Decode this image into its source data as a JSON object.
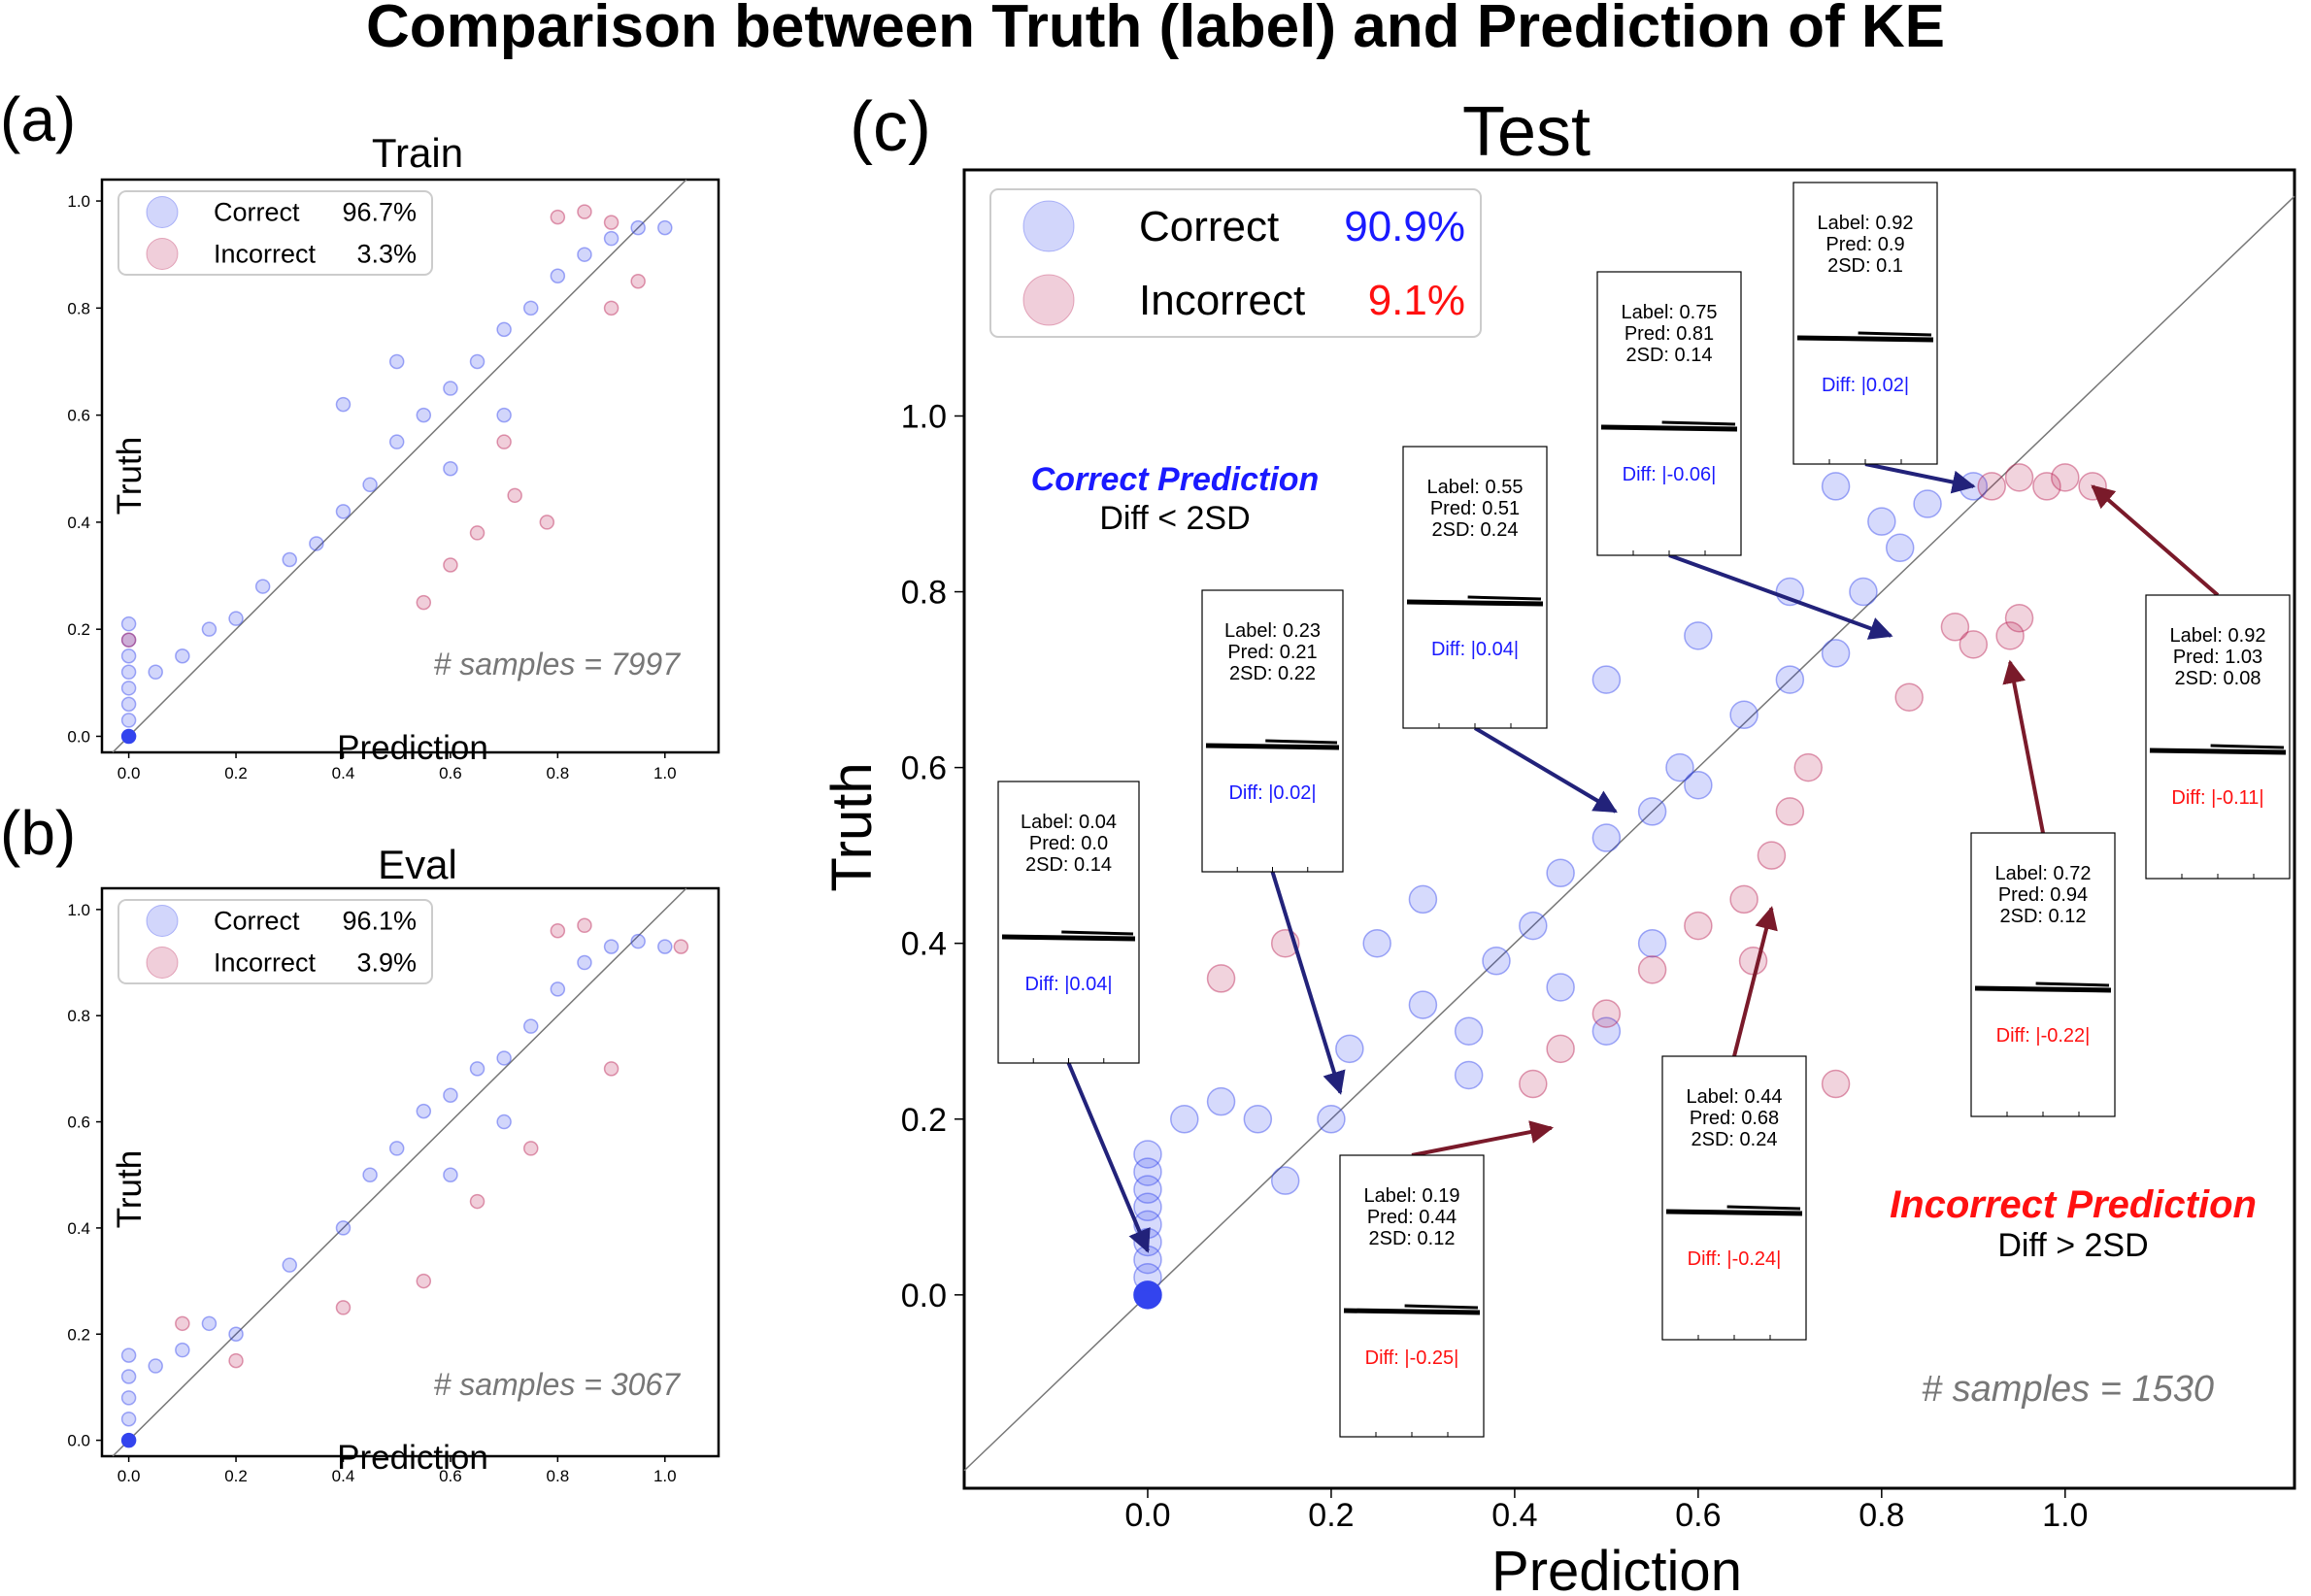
{
  "figure_title": "Comparison between Truth (label) and Prediction of KE",
  "colors": {
    "correct": "#3344ee",
    "incorrect": "#bb2255",
    "correct_text": "#1a1aff",
    "incorrect_text": "#ff1010",
    "arrow_correct": "#22227a",
    "arrow_incorrect": "#7a1a2a",
    "samples_text": "#777777"
  },
  "chart_data": [
    {
      "panel_label": "(a)",
      "type": "scatter",
      "title": "Train",
      "xlabel": "Prediction",
      "ylabel": "Truth",
      "xlim": [
        -0.05,
        1.1
      ],
      "ylim": [
        -0.03,
        1.04
      ],
      "xticks": [
        "0.0",
        "0.2",
        "0.4",
        "0.6",
        "0.8",
        "1.0"
      ],
      "yticks": [
        "0.0",
        "0.2",
        "0.4",
        "0.6",
        "0.8",
        "1.0"
      ],
      "legend": [
        {
          "label": "Correct",
          "value": "96.7%"
        },
        {
          "label": "Incorrect",
          "value": "3.3%"
        }
      ],
      "legend_position": "top-left",
      "samples_text": "# samples = 7997",
      "n_samples": 7997,
      "correct_pct": 96.7,
      "incorrect_pct": 3.3,
      "diagonal": "y = x",
      "series": [
        {
          "name": "Correct",
          "points": [
            [
              0,
              0
            ],
            [
              0,
              0.03
            ],
            [
              0,
              0.06
            ],
            [
              0,
              0.09
            ],
            [
              0,
              0.12
            ],
            [
              0,
              0.15
            ],
            [
              0,
              0.18
            ],
            [
              0,
              0.21
            ],
            [
              0.05,
              0.12
            ],
            [
              0.1,
              0.15
            ],
            [
              0.15,
              0.2
            ],
            [
              0.2,
              0.22
            ],
            [
              0.25,
              0.28
            ],
            [
              0.3,
              0.33
            ],
            [
              0.35,
              0.36
            ],
            [
              0.4,
              0.42
            ],
            [
              0.45,
              0.47
            ],
            [
              0.5,
              0.55
            ],
            [
              0.55,
              0.6
            ],
            [
              0.6,
              0.65
            ],
            [
              0.65,
              0.7
            ],
            [
              0.7,
              0.76
            ],
            [
              0.75,
              0.8
            ],
            [
              0.8,
              0.86
            ],
            [
              0.85,
              0.9
            ],
            [
              0.9,
              0.93
            ],
            [
              0.95,
              0.95
            ],
            [
              1.0,
              0.95
            ],
            [
              0.5,
              0.7
            ],
            [
              0.4,
              0.62
            ],
            [
              0.6,
              0.5
            ],
            [
              0.7,
              0.6
            ]
          ]
        },
        {
          "name": "Incorrect",
          "points": [
            [
              0.8,
              0.97
            ],
            [
              0.85,
              0.98
            ],
            [
              0.9,
              0.96
            ],
            [
              0.7,
              0.55
            ],
            [
              0.72,
              0.45
            ],
            [
              0.6,
              0.32
            ],
            [
              0.65,
              0.38
            ],
            [
              0.55,
              0.25
            ],
            [
              0.9,
              0.8
            ],
            [
              0.95,
              0.85
            ],
            [
              0.0,
              0.18
            ],
            [
              0.78,
              0.4
            ]
          ]
        }
      ]
    },
    {
      "panel_label": "(b)",
      "type": "scatter",
      "title": "Eval",
      "xlabel": "Prediction",
      "ylabel": "Truth",
      "xlim": [
        -0.05,
        1.1
      ],
      "ylim": [
        -0.03,
        1.04
      ],
      "xticks": [
        "0.0",
        "0.2",
        "0.4",
        "0.6",
        "0.8",
        "1.0"
      ],
      "yticks": [
        "0.0",
        "0.2",
        "0.4",
        "0.6",
        "0.8",
        "1.0"
      ],
      "legend": [
        {
          "label": "Correct",
          "value": "96.1%"
        },
        {
          "label": "Incorrect",
          "value": "3.9%"
        }
      ],
      "legend_position": "top-left",
      "samples_text": "# samples = 3067",
      "n_samples": 3067,
      "correct_pct": 96.1,
      "incorrect_pct": 3.9,
      "diagonal": "y = x",
      "series": [
        {
          "name": "Correct",
          "points": [
            [
              0,
              0
            ],
            [
              0,
              0.04
            ],
            [
              0,
              0.08
            ],
            [
              0,
              0.12
            ],
            [
              0,
              0.16
            ],
            [
              0.05,
              0.14
            ],
            [
              0.1,
              0.17
            ],
            [
              0.15,
              0.22
            ],
            [
              0.2,
              0.2
            ],
            [
              0.3,
              0.33
            ],
            [
              0.4,
              0.4
            ],
            [
              0.45,
              0.5
            ],
            [
              0.5,
              0.55
            ],
            [
              0.55,
              0.62
            ],
            [
              0.6,
              0.65
            ],
            [
              0.65,
              0.7
            ],
            [
              0.7,
              0.72
            ],
            [
              0.75,
              0.78
            ],
            [
              0.8,
              0.85
            ],
            [
              0.85,
              0.9
            ],
            [
              0.9,
              0.93
            ],
            [
              0.95,
              0.94
            ],
            [
              1.0,
              0.93
            ],
            [
              0.6,
              0.5
            ],
            [
              0.7,
              0.6
            ]
          ]
        },
        {
          "name": "Incorrect",
          "points": [
            [
              0.8,
              0.96
            ],
            [
              0.85,
              0.97
            ],
            [
              1.03,
              0.93
            ],
            [
              0.9,
              0.7
            ],
            [
              0.75,
              0.55
            ],
            [
              0.65,
              0.45
            ],
            [
              0.55,
              0.3
            ],
            [
              0.4,
              0.25
            ],
            [
              0.2,
              0.15
            ],
            [
              0.1,
              0.22
            ]
          ]
        }
      ]
    },
    {
      "panel_label": "(c)",
      "type": "scatter",
      "title": "Test",
      "xlabel": "Prediction",
      "ylabel": "Truth",
      "xlim": [
        -0.2,
        1.25
      ],
      "ylim": [
        -0.22,
        1.28
      ],
      "xticks": [
        "0.0",
        "0.2",
        "0.4",
        "0.6",
        "0.8",
        "1.0"
      ],
      "yticks": [
        "0.0",
        "0.2",
        "0.4",
        "0.6",
        "0.8",
        "1.0"
      ],
      "legend": [
        {
          "label": "Correct",
          "value": "90.9%"
        },
        {
          "label": "Incorrect",
          "value": "9.1%"
        }
      ],
      "legend_position": "top-left",
      "samples_text": "# samples = 1530",
      "n_samples": 1530,
      "correct_pct": 90.9,
      "incorrect_pct": 9.1,
      "diagonal": "y = x",
      "annotations": [
        {
          "title": "Correct Prediction",
          "text": "Diff < 2SD",
          "kind": "correct"
        },
        {
          "title": "Incorrect Prediction",
          "text": "Diff > 2SD",
          "kind": "incorrect"
        }
      ],
      "series": [
        {
          "name": "Correct",
          "points": [
            [
              0,
              0
            ],
            [
              0,
              0.02
            ],
            [
              0,
              0.04
            ],
            [
              0,
              0.06
            ],
            [
              0,
              0.08
            ],
            [
              0,
              0.1
            ],
            [
              0,
              0.12
            ],
            [
              0,
              0.14
            ],
            [
              0,
              0.16
            ],
            [
              0.04,
              0.2
            ],
            [
              0.08,
              0.22
            ],
            [
              0.12,
              0.2
            ],
            [
              0.15,
              0.13
            ],
            [
              0.2,
              0.2
            ],
            [
              0.22,
              0.28
            ],
            [
              0.3,
              0.33
            ],
            [
              0.35,
              0.3
            ],
            [
              0.38,
              0.38
            ],
            [
              0.42,
              0.42
            ],
            [
              0.45,
              0.48
            ],
            [
              0.5,
              0.52
            ],
            [
              0.55,
              0.55
            ],
            [
              0.58,
              0.6
            ],
            [
              0.6,
              0.58
            ],
            [
              0.65,
              0.66
            ],
            [
              0.7,
              0.7
            ],
            [
              0.75,
              0.73
            ],
            [
              0.78,
              0.8
            ],
            [
              0.82,
              0.85
            ],
            [
              0.85,
              0.9
            ],
            [
              0.9,
              0.92
            ],
            [
              0.75,
              0.92
            ],
            [
              0.8,
              0.88
            ],
            [
              0.7,
              0.8
            ],
            [
              0.6,
              0.75
            ],
            [
              0.5,
              0.7
            ],
            [
              0.55,
              0.4
            ],
            [
              0.45,
              0.35
            ],
            [
              0.3,
              0.45
            ],
            [
              0.25,
              0.4
            ],
            [
              0.35,
              0.25
            ],
            [
              0.5,
              0.3
            ]
          ]
        },
        {
          "name": "Incorrect",
          "points": [
            [
              0.92,
              0.92
            ],
            [
              0.95,
              0.93
            ],
            [
              0.98,
              0.92
            ],
            [
              1.0,
              0.93
            ],
            [
              1.03,
              0.92
            ],
            [
              0.88,
              0.76
            ],
            [
              0.9,
              0.74
            ],
            [
              0.94,
              0.75
            ],
            [
              0.95,
              0.77
            ],
            [
              0.83,
              0.68
            ],
            [
              0.72,
              0.6
            ],
            [
              0.7,
              0.55
            ],
            [
              0.68,
              0.5
            ],
            [
              0.65,
              0.45
            ],
            [
              0.6,
              0.42
            ],
            [
              0.55,
              0.37
            ],
            [
              0.5,
              0.32
            ],
            [
              0.45,
              0.28
            ],
            [
              0.42,
              0.24
            ],
            [
              0.75,
              0.24
            ],
            [
              0.08,
              0.36
            ],
            [
              0.15,
              0.4
            ],
            [
              0.66,
              0.38
            ]
          ]
        }
      ],
      "insets": [
        {
          "label": "Label: 0.04",
          "pred": "Pred: 0.0",
          "sd": "2SD: 0.14",
          "diff": "Diff: |0.04|",
          "kind": "correct",
          "target": [
            0.0,
            0.05
          ]
        },
        {
          "label": "Label: 0.23",
          "pred": "Pred: 0.21",
          "sd": "2SD: 0.22",
          "diff": "Diff: |0.02|",
          "kind": "correct",
          "target": [
            0.21,
            0.23
          ]
        },
        {
          "label": "Label: 0.55",
          "pred": "Pred: 0.51",
          "sd": "2SD: 0.24",
          "diff": "Diff: |0.04|",
          "kind": "correct",
          "target": [
            0.51,
            0.55
          ]
        },
        {
          "label": "Label: 0.75",
          "pred": "Pred: 0.81",
          "sd": "2SD: 0.14",
          "diff": "Diff: |-0.06|",
          "kind": "correct",
          "target": [
            0.81,
            0.75
          ]
        },
        {
          "label": "Label: 0.92",
          "pred": "Pred: 0.9",
          "sd": "2SD: 0.1",
          "diff": "Diff: |0.02|",
          "kind": "correct",
          "target": [
            0.9,
            0.92
          ]
        },
        {
          "label": "Label: 0.19",
          "pred": "Pred: 0.44",
          "sd": "2SD: 0.12",
          "diff": "Diff: |-0.25|",
          "kind": "incorrect",
          "target": [
            0.44,
            0.19
          ]
        },
        {
          "label": "Label: 0.44",
          "pred": "Pred: 0.68",
          "sd": "2SD: 0.24",
          "diff": "Diff: |-0.24|",
          "kind": "incorrect",
          "target": [
            0.68,
            0.44
          ]
        },
        {
          "label": "Label: 0.72",
          "pred": "Pred: 0.94",
          "sd": "2SD: 0.12",
          "diff": "Diff: |-0.22|",
          "kind": "incorrect",
          "target": [
            0.94,
            0.72
          ]
        },
        {
          "label": "Label: 0.92",
          "pred": "Pred: 1.03",
          "sd": "2SD: 0.08",
          "diff": "Diff: |-0.11|",
          "kind": "incorrect",
          "target": [
            1.03,
            0.92
          ]
        }
      ]
    }
  ]
}
